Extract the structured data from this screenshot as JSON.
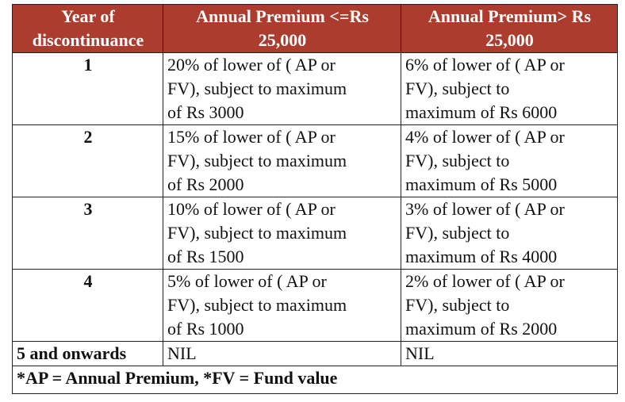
{
  "header": {
    "col1_line1": "Year of",
    "col1_line2": "discontinuance",
    "col2_line1": "Annual Premium <=Rs",
    "col2_line2": "25,000",
    "col3_line1": "Annual Premium> Rs",
    "col3_line2": "25,000",
    "background_color": "#ab3c2e",
    "text_color": "#ffffff"
  },
  "rows": [
    {
      "year": "1",
      "low": [
        "20% of lower of ( AP or",
        "FV), subject to maximum",
        "of Rs 3000"
      ],
      "high": [
        "6% of lower of ( AP or",
        "FV), subject to",
        "maximum of Rs 6000"
      ]
    },
    {
      "year": "2",
      "low": [
        "15% of lower of ( AP or",
        "FV), subject to maximum",
        "of Rs 2000"
      ],
      "high": [
        "4% of lower of ( AP or",
        "FV), subject to",
        "maximum of Rs 5000"
      ]
    },
    {
      "year": "3",
      "low": [
        "10% of lower of ( AP or",
        "FV), subject to maximum",
        "of Rs 1500"
      ],
      "high": [
        "3% of lower of ( AP or",
        "FV), subject to",
        "maximum of Rs 4000"
      ]
    },
    {
      "year": "4",
      "low": [
        "5% of lower of ( AP or",
        "FV), subject to maximum",
        "of Rs 1000"
      ],
      "high": [
        "2% of lower of ( AP or",
        "FV), subject to",
        "maximum of Rs 2000"
      ]
    }
  ],
  "last_row": {
    "year": "5 and onwards",
    "low": "NIL",
    "high": "NIL"
  },
  "footnote": "*AP = Annual Premium, *FV = Fund value"
}
